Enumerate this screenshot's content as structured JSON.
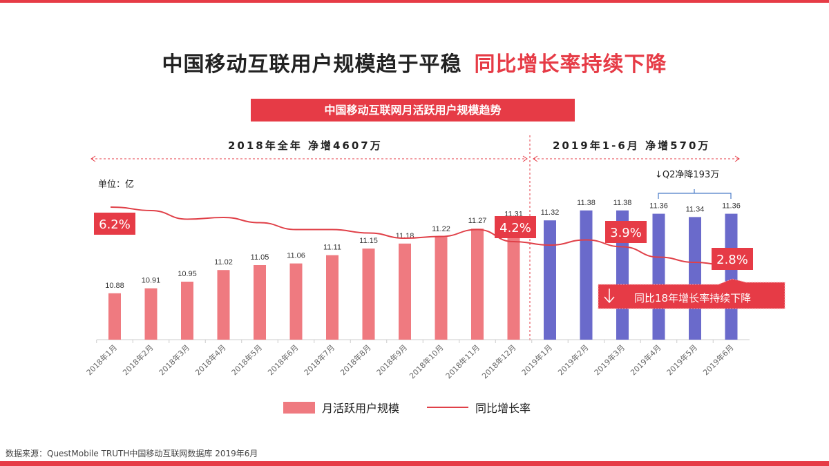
{
  "title": {
    "part1": "中国移动互联用户规模趋于平稳",
    "part2": "同比增长率持续下降"
  },
  "banner": "中国移动互联网月活跃用户规模趋势",
  "segments": {
    "y2018": "2018年全年 净增4607万",
    "y2019": "2019年1-6月 净增570万"
  },
  "unit": "单位：亿",
  "q2_note": "↓Q2净降193万",
  "callout": "同比18年增长率持续下降",
  "footer": "数据来源：QuestMobile TRUTH中国移动互联网数据库 2019年6月",
  "colors": {
    "bar2018": "#ef7a80",
    "bar2019": "#6a6acb",
    "line": "#e04048",
    "accent": "#e63b46"
  },
  "chart_data": {
    "type": "bar+line",
    "categories": [
      "2018年1月",
      "2018年2月",
      "2018年3月",
      "2018年4月",
      "2018年5月",
      "2018年6月",
      "2018年7月",
      "2018年8月",
      "2018年9月",
      "2018年10月",
      "2018年11月",
      "2018年12月",
      "2019年1月",
      "2019年2月",
      "2019年3月",
      "2019年4月",
      "2019年5月",
      "2019年6月"
    ],
    "series": [
      {
        "name": "月活跃用户规模",
        "type": "bar",
        "values": [
          10.88,
          10.91,
          10.95,
          11.02,
          11.05,
          11.06,
          11.11,
          11.15,
          11.18,
          11.22,
          11.27,
          11.31,
          11.32,
          11.38,
          11.38,
          11.36,
          11.34,
          11.36
        ]
      },
      {
        "name": "同比增长率",
        "type": "line",
        "values": [
          6.2,
          6.0,
          5.5,
          5.6,
          5.3,
          4.9,
          4.9,
          4.7,
          4.4,
          4.5,
          4.9,
          4.2,
          4.0,
          4.3,
          3.9,
          3.3,
          3.0,
          2.8
        ]
      }
    ],
    "line_labels": [
      {
        "index": 0,
        "text": "6.2%"
      },
      {
        "index": 11,
        "text": "4.2%"
      },
      {
        "index": 14,
        "text": "3.9%"
      },
      {
        "index": 17,
        "text": "2.8%"
      }
    ],
    "ylim_bar": [
      10.6,
      11.5
    ],
    "ylim_line": [
      2,
      7
    ],
    "legend_position": "bottom",
    "grid": false
  }
}
